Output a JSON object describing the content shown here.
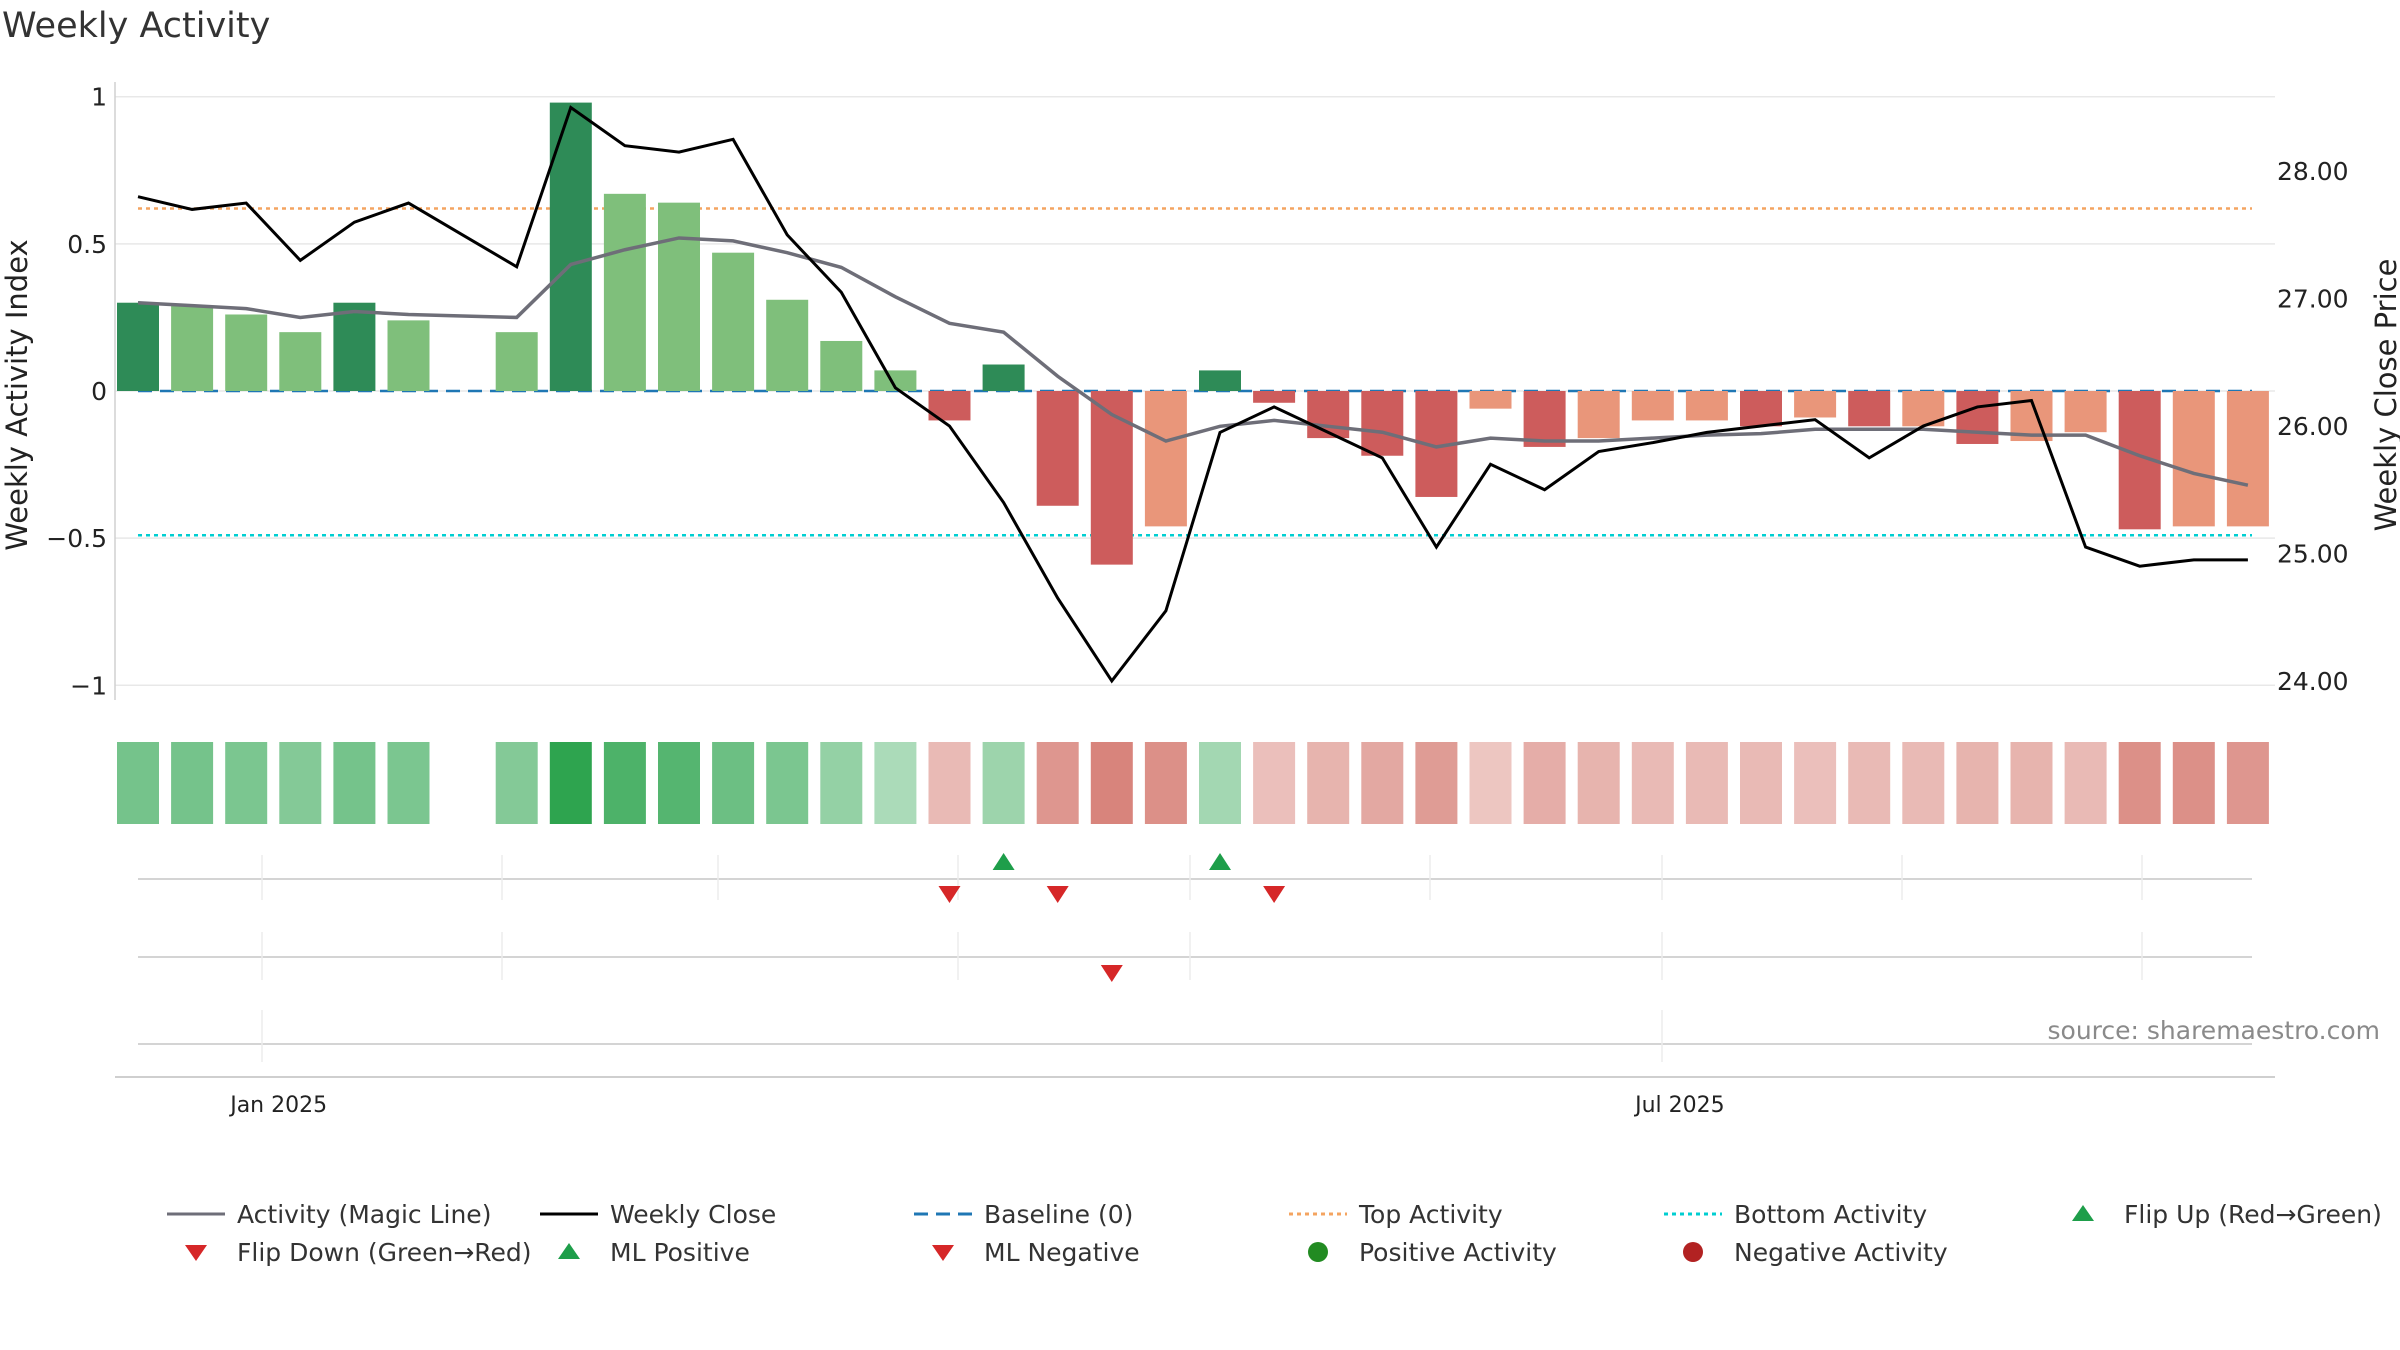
{
  "title": "Weekly Activity",
  "source": "source: sharemaestro.com",
  "colors": {
    "strong_green": "#2e8b57",
    "light_green": "#7fbf7b",
    "strong_red": "#cd5c5c",
    "light_red": "#e9967a",
    "magic_line": "#6e6e78",
    "close_line": "#000000",
    "baseline": "#1f77b4",
    "top": "#f4a460",
    "bottom": "#00ced1",
    "flip_up": "#1e9e4a",
    "flip_down": "#d62728",
    "grid": "#e8e8e8"
  },
  "chart_data": {
    "type": "bar+line",
    "title": "Weekly Activity",
    "ylabel_left": "Weekly Activity Index",
    "ylabel_right": "Weekly Close Price",
    "left_ylim": [
      -1.05,
      1.05
    ],
    "left_ticks": [
      {
        "v": 1,
        "label": "1"
      },
      {
        "v": 0.5,
        "label": "0.5"
      },
      {
        "v": 0,
        "label": "0"
      },
      {
        "v": -0.5,
        "label": "−0.5"
      },
      {
        "v": -1,
        "label": "−1"
      }
    ],
    "right_ylim": [
      23.85,
      28.7
    ],
    "right_ticks": [
      {
        "v": 28,
        "label": "28.00"
      },
      {
        "v": 27,
        "label": "27.00"
      },
      {
        "v": 26,
        "label": "26.00"
      },
      {
        "v": 25,
        "label": "25.00"
      },
      {
        "v": 24,
        "label": "24.00"
      }
    ],
    "x_ticks": [
      {
        "week": 2.6,
        "label": "Jan 2025"
      },
      {
        "week": 28.5,
        "label": "Jul 2025"
      }
    ],
    "week_count": 40,
    "activity": [
      0.3,
      0.29,
      0.26,
      0.2,
      0.3,
      0.24,
      null,
      0.2,
      0.98,
      0.67,
      0.64,
      0.47,
      0.31,
      0.17,
      0.07,
      -0.1,
      0.09,
      -0.39,
      -0.59,
      -0.46,
      0.07,
      -0.04,
      -0.16,
      -0.22,
      -0.36,
      -0.06,
      -0.19,
      -0.16,
      -0.1,
      -0.1,
      -0.12,
      -0.09,
      -0.12,
      -0.12,
      -0.18,
      -0.17,
      -0.14,
      -0.47,
      -0.46,
      -0.46
    ],
    "bar_strength": [
      "strong",
      "light",
      "light",
      "light",
      "strong",
      "light",
      null,
      "light",
      "strong",
      "light",
      "light",
      "light",
      "light",
      "light",
      "light",
      "strong",
      "strong",
      "strong",
      "strong",
      "light",
      "strong",
      "strong",
      "strong",
      "strong",
      "strong",
      "light",
      "strong",
      "light",
      "light",
      "light",
      "strong",
      "light",
      "strong",
      "light",
      "strong",
      "light",
      "light",
      "strong",
      "light",
      "light"
    ],
    "magic_line": [
      0.3,
      0.29,
      0.28,
      0.25,
      0.27,
      0.26,
      0.255,
      0.25,
      0.43,
      0.48,
      0.52,
      0.51,
      0.47,
      0.42,
      0.32,
      0.23,
      0.2,
      0.05,
      -0.08,
      -0.17,
      -0.12,
      -0.1,
      -0.12,
      -0.14,
      -0.19,
      -0.16,
      -0.17,
      -0.17,
      -0.16,
      -0.15,
      -0.145,
      -0.13,
      -0.13,
      -0.13,
      -0.14,
      -0.15,
      -0.15,
      -0.22,
      -0.28,
      -0.32
    ],
    "weekly_close": [
      27.8,
      27.7,
      27.75,
      27.3,
      27.6,
      27.75,
      27.5,
      27.25,
      28.5,
      28.2,
      28.15,
      28.25,
      27.5,
      27.05,
      26.3,
      26.0,
      25.4,
      24.65,
      24.0,
      24.55,
      25.95,
      26.15,
      25.95,
      25.75,
      25.05,
      25.7,
      25.5,
      25.8,
      25.87,
      25.95,
      26.0,
      26.05,
      25.75,
      26.0,
      26.15,
      26.2,
      25.05,
      24.9,
      24.95,
      24.95
    ],
    "heat_intensity": [
      0.55,
      0.55,
      0.5,
      0.45,
      0.55,
      0.5,
      null,
      0.45,
      1.0,
      0.8,
      0.75,
      0.6,
      0.5,
      0.35,
      0.2,
      0.25,
      0.3,
      0.55,
      0.7,
      0.6,
      0.25,
      0.2,
      0.3,
      0.4,
      0.5,
      0.15,
      0.35,
      0.3,
      0.25,
      0.25,
      0.25,
      0.2,
      0.25,
      0.25,
      0.3,
      0.3,
      0.25,
      0.6,
      0.6,
      0.55
    ],
    "reference_lines": {
      "baseline": 0,
      "top": 0.62,
      "bottom": -0.49
    },
    "flip_up_weeks": [
      16,
      20
    ],
    "flip_down_weeks": [
      15,
      17,
      21
    ],
    "ml_negative_weeks": [
      18
    ],
    "legend": [
      {
        "label": "Activity (Magic Line)",
        "kind": "line",
        "color": "#6e6e78",
        "dash": ""
      },
      {
        "label": "Weekly Close",
        "kind": "line",
        "color": "#000000",
        "dash": ""
      },
      {
        "label": "Baseline (0)",
        "kind": "line",
        "color": "#1f77b4",
        "dash": "14 8"
      },
      {
        "label": "Top Activity",
        "kind": "line",
        "color": "#f4a460",
        "dash": "4 4"
      },
      {
        "label": "Bottom Activity",
        "kind": "line",
        "color": "#00ced1",
        "dash": "4 4"
      },
      {
        "label": "Flip Up (Red→Green)",
        "kind": "tri-up",
        "color": "#1e9e4a"
      },
      {
        "label": "Flip Down (Green→Red)",
        "kind": "tri-down",
        "color": "#d62728"
      },
      {
        "label": "ML Positive",
        "kind": "tri-up",
        "color": "#1e9e4a"
      },
      {
        "label": "ML Negative",
        "kind": "tri-down",
        "color": "#d62728"
      },
      {
        "label": "Positive Activity",
        "kind": "dot",
        "color": "#228b22"
      },
      {
        "label": "Negative Activity",
        "kind": "dot",
        "color": "#b22222"
      }
    ]
  }
}
